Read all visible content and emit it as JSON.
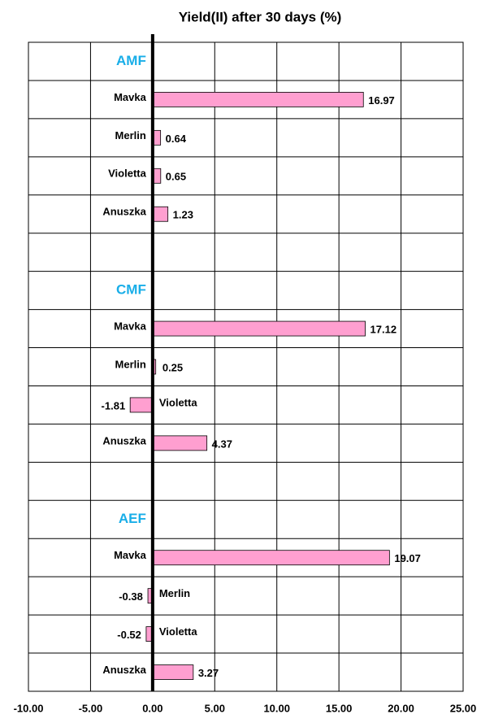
{
  "chart_data": {
    "type": "bar",
    "orientation": "horizontal",
    "title": "Yield(II) after 30 days (%)",
    "color": "#ff9fd0",
    "group_label_color": "#19aee8",
    "groups": [
      {
        "name": "AMF",
        "categories": [
          "Mavka",
          "Merlin",
          "Violetta",
          "Anuszka"
        ],
        "values": [
          16.97,
          0.64,
          0.65,
          1.23
        ]
      },
      {
        "name": "CMF",
        "categories": [
          "Mavka",
          "Merlin",
          "Violetta",
          "Anuszka"
        ],
        "values": [
          17.12,
          0.25,
          -1.81,
          4.37
        ]
      },
      {
        "name": "AEF",
        "categories": [
          "Mavka",
          "Merlin",
          "Violetta",
          "Anuszka"
        ],
        "values": [
          19.07,
          -0.38,
          -0.52,
          3.27
        ]
      }
    ],
    "xlim": [
      -10,
      25
    ],
    "xticks": [
      {
        "value": -10,
        "label": "-10.00"
      },
      {
        "value": -5,
        "label": "-5.00"
      },
      {
        "value": 0,
        "label": "0.00"
      },
      {
        "value": 5,
        "label": "5.00"
      },
      {
        "value": 10,
        "label": "10.00"
      },
      {
        "value": 15,
        "label": "15.00"
      },
      {
        "value": 20,
        "label": "20.00"
      },
      {
        "value": 25,
        "label": "25.00"
      }
    ],
    "grid": true
  }
}
